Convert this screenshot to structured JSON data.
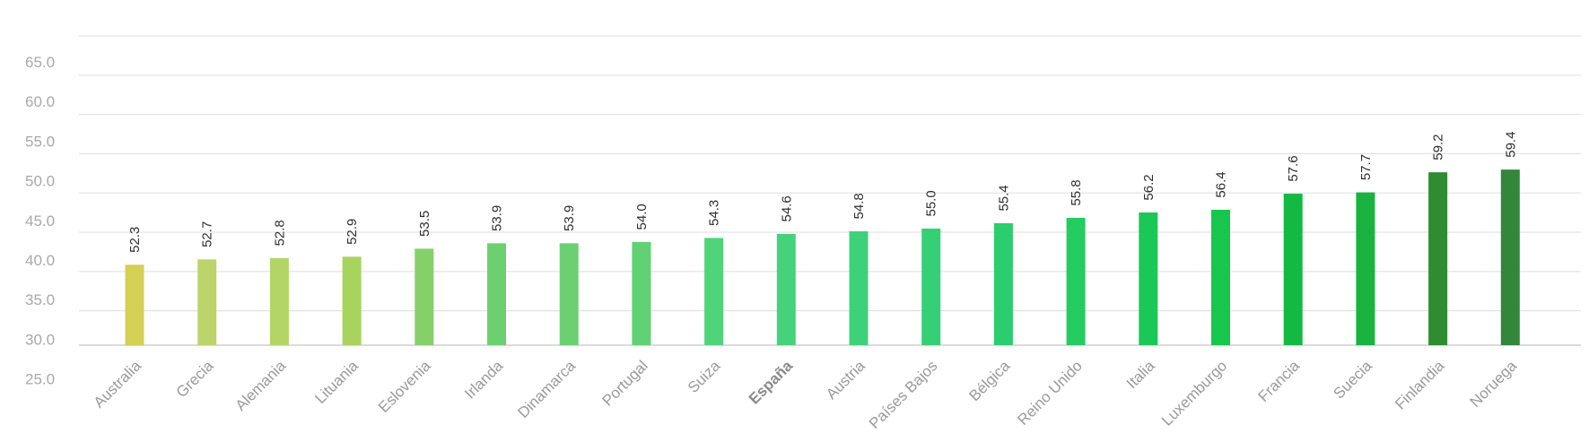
{
  "chart_data": {
    "type": "bar",
    "categories": [
      "Australia",
      "Grecia",
      "Alemania",
      "Lituania",
      "Eslovenia",
      "Irlanda",
      "Dinamarca",
      "Portugal",
      "Suiza",
      "España",
      "Austria",
      "Países Bajos",
      "Bélgica",
      "Reino Unido",
      "Italia",
      "Luxemburgo",
      "Francia",
      "Suecia",
      "Finlandia",
      "Noruega"
    ],
    "values": [
      52.3,
      52.7,
      52.8,
      52.9,
      53.5,
      53.9,
      53.9,
      54.0,
      54.3,
      54.6,
      54.8,
      55.0,
      55.4,
      55.8,
      56.2,
      56.4,
      57.6,
      57.7,
      59.2,
      59.4
    ],
    "value_labels": [
      "52.3",
      "52.7",
      "52.8",
      "52.9",
      "53.5",
      "53.9",
      "53.9",
      "54.0",
      "54.3",
      "54.6",
      "54.8",
      "55.0",
      "55.4",
      "55.8",
      "56.2",
      "56.4",
      "57.6",
      "57.7",
      "59.2",
      "59.4"
    ],
    "yticks": [
      "65.0",
      "60.0",
      "55.0",
      "50.0",
      "45.0",
      "40.0",
      "35.0",
      "30.0",
      "25.0"
    ],
    "highlight_category": "España",
    "colors": [
      "#d4cf55",
      "#bdd46a",
      "#b3d566",
      "#a8d35e",
      "#86d06a",
      "#6dd070",
      "#6cd072",
      "#61d174",
      "#50d47a",
      "#44d37b",
      "#3dd27a",
      "#35d076",
      "#2ccd6e",
      "#25cb63",
      "#1cc855",
      "#16c64d",
      "#13b942",
      "#18b43f",
      "#2e8d30",
      "#33873a"
    ],
    "title": "",
    "xlabel": "",
    "ylabel": "",
    "grid": true,
    "legend": "none"
  }
}
